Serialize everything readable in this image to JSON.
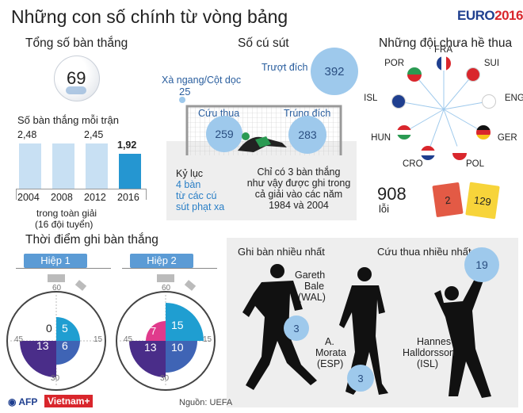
{
  "title": "Những con số chính từ vòng bảng",
  "logo": {
    "euro": "EURO",
    "year": "2016"
  },
  "goals": {
    "header": "Tổng số bàn thắng",
    "total": "69"
  },
  "per_match": {
    "header": "Số bàn thắng mỗi trận",
    "note_line1": "trong toàn giải",
    "note_line2": "(16 đội tuyển)",
    "bars": [
      {
        "year": "2004",
        "value": "2,48",
        "v": 2.48
      },
      {
        "year": "2008",
        "value": "",
        "v": 2.48
      },
      {
        "year": "2012",
        "value": "2,45",
        "v": 2.45
      },
      {
        "year": "2016",
        "value": "1,92",
        "v": 1.92
      }
    ]
  },
  "shots": {
    "header": "Số cú sút",
    "off_label": "Trượt đích",
    "off_value": "392",
    "post_label": "Xà ngang/Cột dọc",
    "post_value": "25",
    "saved_label": "Cứu thua",
    "saved_value": "259",
    "on_label": "Trúng đích",
    "on_value": "283",
    "record_l1": "Kỷ lục",
    "record_l2": "4 bàn",
    "record_l3": "từ các cú",
    "record_l4": "sút phạt xa",
    "only_l1": "Chỉ có 3 bàn thắng",
    "only_l2": "như vậy được ghi trong",
    "only_l3": "cả giải vào các năm",
    "only_l4": "1984 và 2004"
  },
  "unbeaten": {
    "header": "Những đội chưa hề thua",
    "teams": [
      "FRA",
      "SUI",
      "ENG",
      "GER",
      "POL",
      "CRO",
      "HUN",
      "ISL",
      "POR"
    ]
  },
  "fouls": {
    "value": "908",
    "label": "lỗi",
    "red": "2",
    "yellow": "129"
  },
  "timing": {
    "header": "Thời điểm ghi bàn thắng",
    "half1": {
      "label": "Hiệp 1",
      "q1": "5",
      "q2": "6",
      "q3": "13",
      "q4": "0"
    },
    "half2": {
      "label": "Hiệp 2",
      "q1": "15",
      "q2": "10",
      "q3": "13",
      "q4": "7"
    },
    "ticks": {
      "top": "60",
      "right": "15",
      "bottom": "30",
      "left": "45"
    }
  },
  "players": {
    "top_scorer_header": "Ghi bàn nhiều nhất",
    "top_saver_header": "Cứu thua nhiều nhất",
    "bale_l1": "Gareth",
    "bale_l2": "Bale",
    "bale_l3": "(WAL)",
    "bale_value": "3",
    "morata_l1": "A.",
    "morata_l2": "Morata",
    "morata_l3": "(ESP)",
    "morata_value": "3",
    "hannes_l1": "Hannes",
    "hannes_l2": "Halldorsson",
    "hannes_l3": "(ISL)",
    "hannes_value": "19"
  },
  "footer": {
    "afp": "AFP",
    "vn": "Vietnam+",
    "source": "Nguồn: UEFA"
  }
}
